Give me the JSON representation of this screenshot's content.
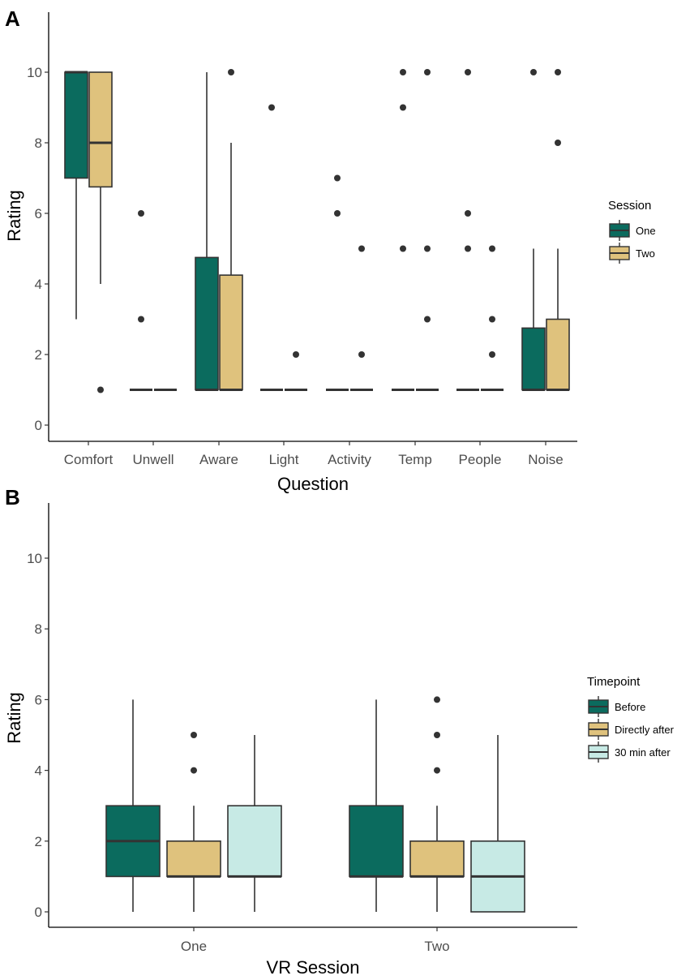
{
  "colors": {
    "one": "#0b6b5e",
    "two": "#dfc27d",
    "three": "#c7eae5",
    "outline": "#333333"
  },
  "chart_data": [
    {
      "type": "boxplot",
      "panel_label": "A",
      "xlabel": "Question",
      "ylabel": "Rating",
      "ylim": [
        0,
        10
      ],
      "yticks": [
        "0",
        "2",
        "4",
        "6",
        "8",
        "10"
      ],
      "categories": [
        "Comfort",
        "Unwell",
        "Aware",
        "Light",
        "Activity",
        "Temp",
        "People",
        "Noise"
      ],
      "legend": {
        "title": "Session",
        "entries": [
          "One",
          "Two"
        ],
        "position": "right"
      },
      "series": [
        {
          "name": "One",
          "boxes": [
            {
              "q1": 7,
              "median": 10,
              "q3": 10,
              "lo": 3,
              "hi": 10,
              "outliers": []
            },
            {
              "q1": 1,
              "median": 1,
              "q3": 1,
              "lo": 1,
              "hi": 1,
              "outliers": [
                6,
                3
              ]
            },
            {
              "q1": 1,
              "median": 1,
              "q3": 4.75,
              "lo": 1,
              "hi": 10,
              "outliers": []
            },
            {
              "q1": 1,
              "median": 1,
              "q3": 1,
              "lo": 1,
              "hi": 1,
              "outliers": [
                9
              ]
            },
            {
              "q1": 1,
              "median": 1,
              "q3": 1,
              "lo": 1,
              "hi": 1,
              "outliers": [
                7,
                6
              ]
            },
            {
              "q1": 1,
              "median": 1,
              "q3": 1,
              "lo": 1,
              "hi": 1,
              "outliers": [
                10,
                9,
                5
              ]
            },
            {
              "q1": 1,
              "median": 1,
              "q3": 1,
              "lo": 1,
              "hi": 1,
              "outliers": [
                10,
                6,
                5
              ]
            },
            {
              "q1": 1,
              "median": 1,
              "q3": 2.75,
              "lo": 1,
              "hi": 5,
              "outliers": [
                10
              ]
            }
          ]
        },
        {
          "name": "Two",
          "boxes": [
            {
              "q1": 6.75,
              "median": 8,
              "q3": 10,
              "lo": 4,
              "hi": 10,
              "outliers": [
                1
              ]
            },
            {
              "q1": 1,
              "median": 1,
              "q3": 1,
              "lo": 1,
              "hi": 1,
              "outliers": []
            },
            {
              "q1": 1,
              "median": 1,
              "q3": 4.25,
              "lo": 1,
              "hi": 8,
              "outliers": [
                10
              ]
            },
            {
              "q1": 1,
              "median": 1,
              "q3": 1,
              "lo": 1,
              "hi": 1,
              "outliers": [
                2
              ]
            },
            {
              "q1": 1,
              "median": 1,
              "q3": 1,
              "lo": 1,
              "hi": 1,
              "outliers": [
                5,
                2
              ]
            },
            {
              "q1": 1,
              "median": 1,
              "q3": 1,
              "lo": 1,
              "hi": 1,
              "outliers": [
                10,
                5,
                3
              ]
            },
            {
              "q1": 1,
              "median": 1,
              "q3": 1,
              "lo": 1,
              "hi": 1,
              "outliers": [
                5,
                3,
                2
              ]
            },
            {
              "q1": 1,
              "median": 1,
              "q3": 3,
              "lo": 1,
              "hi": 5,
              "outliers": [
                10,
                8
              ]
            }
          ]
        }
      ]
    },
    {
      "type": "boxplot",
      "panel_label": "B",
      "xlabel": "VR Session",
      "ylabel": "Rating",
      "ylim": [
        0,
        10
      ],
      "yticks": [
        "0",
        "2",
        "4",
        "6",
        "8",
        "10"
      ],
      "categories": [
        "One",
        "Two"
      ],
      "legend": {
        "title": "Timepoint",
        "entries": [
          "Before",
          "Directly after",
          "30 min after"
        ],
        "position": "right"
      },
      "series": [
        {
          "name": "Before",
          "boxes": [
            {
              "q1": 1,
              "median": 2,
              "q3": 3,
              "lo": 0,
              "hi": 6,
              "outliers": []
            },
            {
              "q1": 1,
              "median": 1,
              "q3": 3,
              "lo": 0,
              "hi": 6,
              "outliers": []
            }
          ]
        },
        {
          "name": "Directly after",
          "boxes": [
            {
              "q1": 1,
              "median": 1,
              "q3": 2,
              "lo": 0,
              "hi": 3,
              "outliers": [
                5,
                4
              ]
            },
            {
              "q1": 1,
              "median": 1,
              "q3": 2,
              "lo": 0,
              "hi": 3,
              "outliers": [
                6,
                5,
                4
              ]
            }
          ]
        },
        {
          "name": "30 min after",
          "boxes": [
            {
              "q1": 1,
              "median": 1,
              "q3": 3,
              "lo": 0,
              "hi": 5,
              "outliers": []
            },
            {
              "q1": 0,
              "median": 1,
              "q3": 2,
              "lo": 0,
              "hi": 5,
              "outliers": []
            }
          ]
        }
      ]
    }
  ]
}
